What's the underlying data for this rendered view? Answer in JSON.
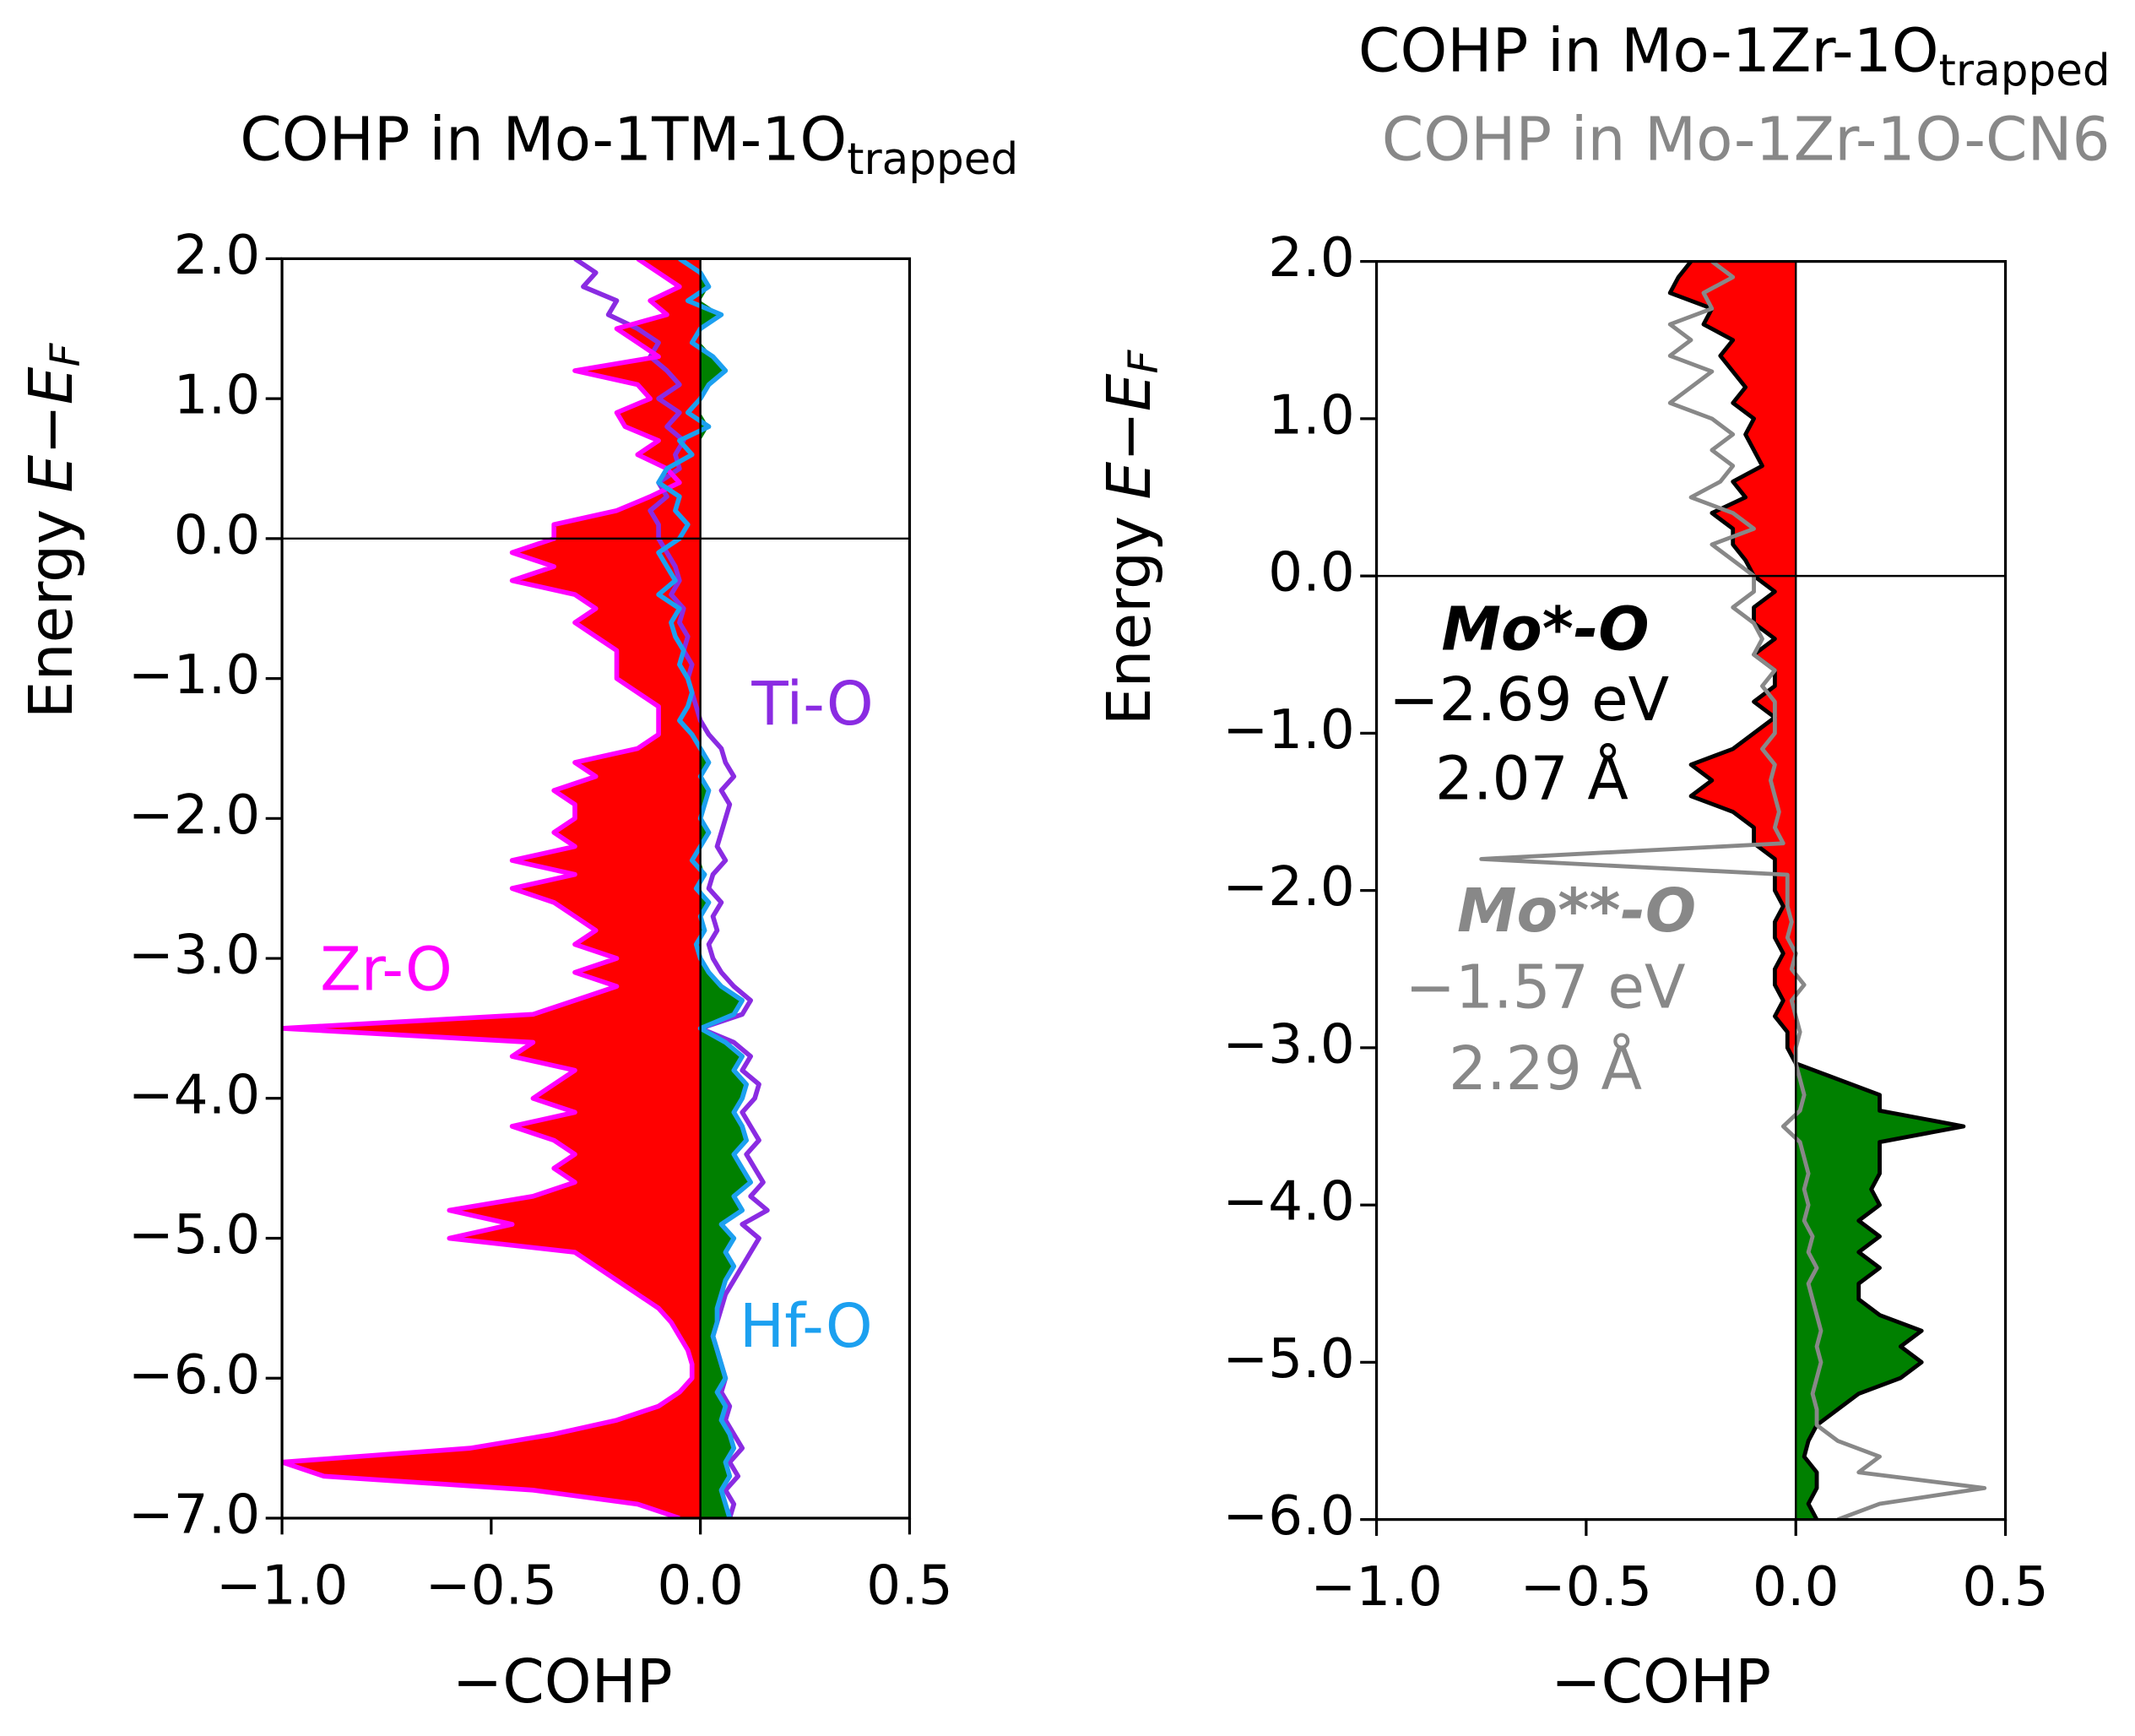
{
  "chart_data": [
    {
      "type": "line",
      "title": "COHP in Mo-1TM-1O",
      "title_subscript": "trapped",
      "xlabel": "−COHP",
      "ylabel": "Energy",
      "ylabel_math": "E−E",
      "ylabel_sub": "F",
      "xlim": [
        -1.0,
        0.5
      ],
      "ylim": [
        -7.0,
        2.0
      ],
      "xticks": [
        {
          "value": -1.0,
          "label": "−1.0"
        },
        {
          "value": -0.5,
          "label": "−0.5"
        },
        {
          "value": 0.0,
          "label": "0.0"
        },
        {
          "value": 0.5,
          "label": "0.5"
        }
      ],
      "yticks": [
        {
          "value": 2.0,
          "label": "2.0"
        },
        {
          "value": 1.0,
          "label": "1.0"
        },
        {
          "value": 0.0,
          "label": "0.0"
        },
        {
          "value": -1.0,
          "label": "−1.0"
        },
        {
          "value": -2.0,
          "label": "−2.0"
        },
        {
          "value": -3.0,
          "label": "−3.0"
        },
        {
          "value": -4.0,
          "label": "−4.0"
        },
        {
          "value": -5.0,
          "label": "−5.0"
        },
        {
          "value": -6.0,
          "label": "−6.0"
        },
        {
          "value": -7.0,
          "label": "−7.0"
        }
      ],
      "fill_negative": "#ff0000",
      "fill_positive": "#008000",
      "energy": [
        2.0,
        1.9,
        1.8,
        1.7,
        1.6,
        1.5,
        1.4,
        1.3,
        1.2,
        1.1,
        1.0,
        0.9,
        0.8,
        0.7,
        0.6,
        0.5,
        0.4,
        0.3,
        0.2,
        0.1,
        0.0,
        -0.1,
        -0.2,
        -0.3,
        -0.4,
        -0.5,
        -0.6,
        -0.7,
        -0.8,
        -0.9,
        -1.0,
        -1.1,
        -1.2,
        -1.3,
        -1.4,
        -1.5,
        -1.6,
        -1.7,
        -1.8,
        -1.9,
        -2.0,
        -2.1,
        -2.2,
        -2.3,
        -2.4,
        -2.5,
        -2.6,
        -2.7,
        -2.8,
        -2.9,
        -3.0,
        -3.1,
        -3.2,
        -3.3,
        -3.4,
        -3.5,
        -3.6,
        -3.7,
        -3.8,
        -3.9,
        -4.0,
        -4.1,
        -4.2,
        -4.3,
        -4.4,
        -4.5,
        -4.6,
        -4.7,
        -4.8,
        -4.9,
        -5.0,
        -5.1,
        -5.2,
        -5.3,
        -5.4,
        -5.5,
        -5.6,
        -5.7,
        -5.8,
        -5.9,
        -6.0,
        -6.1,
        -6.2,
        -6.3,
        -6.4,
        -6.5,
        -6.6,
        -6.7,
        -6.8,
        -6.9,
        -7.0
      ],
      "series": [
        {
          "name": "Zr-O",
          "color": "#ff00ff",
          "fill": true,
          "values": [
            -0.15,
            -0.1,
            -0.05,
            -0.12,
            -0.08,
            -0.2,
            -0.15,
            -0.1,
            -0.3,
            -0.15,
            -0.12,
            -0.2,
            -0.18,
            -0.1,
            -0.15,
            -0.08,
            -0.05,
            -0.12,
            -0.2,
            -0.35,
            -0.35,
            -0.45,
            -0.35,
            -0.45,
            -0.3,
            -0.25,
            -0.3,
            -0.25,
            -0.2,
            -0.2,
            -0.2,
            -0.15,
            -0.1,
            -0.1,
            -0.1,
            -0.15,
            -0.3,
            -0.25,
            -0.35,
            -0.3,
            -0.3,
            -0.35,
            -0.3,
            -0.45,
            -0.3,
            -0.45,
            -0.35,
            -0.3,
            -0.25,
            -0.3,
            -0.2,
            -0.3,
            -0.2,
            -0.3,
            -0.4,
            -1.0,
            -0.4,
            -0.45,
            -0.3,
            -0.35,
            -0.4,
            -0.3,
            -0.45,
            -0.35,
            -0.3,
            -0.35,
            -0.3,
            -0.4,
            -0.6,
            -0.45,
            -0.6,
            -0.3,
            -0.25,
            -0.2,
            -0.15,
            -0.1,
            -0.07,
            -0.05,
            -0.03,
            -0.02,
            -0.02,
            -0.05,
            -0.1,
            -0.2,
            -0.35,
            -0.55,
            -1.0,
            -0.9,
            -0.4,
            -0.15,
            -0.05
          ]
        },
        {
          "name": "Hf-O",
          "color": "#1ca0f0",
          "fill": true,
          "values": [
            -0.05,
            0.0,
            0.02,
            -0.03,
            0.05,
            0.0,
            -0.02,
            0.03,
            0.06,
            0.02,
            0.0,
            -0.03,
            0.02,
            -0.05,
            -0.02,
            -0.08,
            -0.1,
            -0.05,
            -0.06,
            -0.03,
            -0.05,
            -0.1,
            -0.08,
            -0.06,
            -0.1,
            -0.05,
            -0.07,
            -0.06,
            -0.04,
            -0.05,
            -0.03,
            -0.02,
            -0.03,
            -0.05,
            -0.02,
            0.0,
            0.02,
            0.0,
            0.02,
            0.01,
            0.0,
            0.02,
            0.0,
            -0.02,
            0.01,
            -0.01,
            0.02,
            0.0,
            0.01,
            -0.01,
            0.0,
            0.02,
            0.05,
            0.1,
            0.08,
            0.0,
            0.06,
            0.1,
            0.08,
            0.11,
            0.1,
            0.08,
            0.1,
            0.11,
            0.08,
            0.1,
            0.12,
            0.08,
            0.1,
            0.05,
            0.08,
            0.06,
            0.08,
            0.06,
            0.05,
            0.04,
            0.04,
            0.03,
            0.04,
            0.05,
            0.06,
            0.04,
            0.06,
            0.05,
            0.07,
            0.08,
            0.06,
            0.07,
            0.05,
            0.06,
            0.07
          ]
        },
        {
          "name": "Ti-O",
          "color": "#8a2be2",
          "values": [
            -0.3,
            -0.25,
            -0.28,
            -0.2,
            -0.22,
            -0.15,
            -0.1,
            -0.12,
            -0.08,
            -0.05,
            -0.1,
            -0.05,
            -0.08,
            -0.04,
            -0.06,
            -0.05,
            -0.1,
            -0.08,
            -0.12,
            -0.1,
            -0.1,
            -0.08,
            -0.06,
            -0.05,
            -0.07,
            -0.04,
            -0.05,
            -0.03,
            -0.04,
            -0.02,
            -0.03,
            -0.02,
            -0.01,
            0.0,
            0.02,
            0.05,
            0.06,
            0.08,
            0.05,
            0.07,
            0.06,
            0.05,
            0.04,
            0.06,
            0.03,
            0.02,
            0.05,
            0.03,
            0.04,
            0.02,
            0.03,
            0.05,
            0.08,
            0.12,
            0.1,
            0.0,
            0.08,
            0.12,
            0.1,
            0.14,
            0.13,
            0.1,
            0.12,
            0.14,
            0.11,
            0.13,
            0.15,
            0.12,
            0.16,
            0.1,
            0.14,
            0.12,
            0.1,
            0.08,
            0.06,
            0.05,
            0.04,
            0.03,
            0.04,
            0.05,
            0.06,
            0.05,
            0.07,
            0.06,
            0.08,
            0.1,
            0.07,
            0.09,
            0.06,
            0.08,
            0.07
          ]
        }
      ],
      "annotations": [
        {
          "text": "Zr-O",
          "color": "#ff00ff"
        },
        {
          "text": "Ti-O",
          "color": "#8a2be2"
        },
        {
          "text": "Hf-O",
          "color": "#1ca0f0"
        }
      ]
    },
    {
      "type": "line",
      "xlabel": "−COHP",
      "ylabel": "Energy",
      "ylabel_math": "E−E",
      "ylabel_sub": "F",
      "xlim": [
        -1.0,
        0.5
      ],
      "ylim": [
        -6.0,
        2.0
      ],
      "xticks": [
        {
          "value": -1.0,
          "label": "−1.0"
        },
        {
          "value": -0.5,
          "label": "−0.5"
        },
        {
          "value": 0.0,
          "label": "0.0"
        },
        {
          "value": 0.5,
          "label": "0.5"
        }
      ],
      "yticks": [
        {
          "value": 2.0,
          "label": "2.0"
        },
        {
          "value": 1.0,
          "label": "1.0"
        },
        {
          "value": 0.0,
          "label": "0.0"
        },
        {
          "value": -1.0,
          "label": "−1.0"
        },
        {
          "value": -2.0,
          "label": "−2.0"
        },
        {
          "value": -3.0,
          "label": "−3.0"
        },
        {
          "value": -4.0,
          "label": "−4.0"
        },
        {
          "value": -5.0,
          "label": "−5.0"
        },
        {
          "value": -6.0,
          "label": "−6.0"
        }
      ],
      "fill_negative": "#ff0000",
      "fill_positive": "#008000",
      "energy": [
        2.0,
        1.9,
        1.8,
        1.7,
        1.6,
        1.5,
        1.4,
        1.3,
        1.2,
        1.1,
        1.0,
        0.9,
        0.8,
        0.7,
        0.6,
        0.5,
        0.4,
        0.3,
        0.2,
        0.1,
        0.0,
        -0.1,
        -0.2,
        -0.3,
        -0.4,
        -0.5,
        -0.6,
        -0.7,
        -0.8,
        -0.9,
        -1.0,
        -1.1,
        -1.2,
        -1.3,
        -1.4,
        -1.5,
        -1.6,
        -1.7,
        -1.8,
        -1.9,
        -2.0,
        -2.1,
        -2.2,
        -2.3,
        -2.4,
        -2.5,
        -2.6,
        -2.7,
        -2.8,
        -2.9,
        -3.0,
        -3.1,
        -3.2,
        -3.3,
        -3.4,
        -3.5,
        -3.6,
        -3.7,
        -3.8,
        -3.9,
        -4.0,
        -4.1,
        -4.2,
        -4.3,
        -4.4,
        -4.5,
        -4.6,
        -4.7,
        -4.8,
        -4.9,
        -5.0,
        -5.1,
        -5.2,
        -5.3,
        -5.4,
        -5.5,
        -5.6,
        -5.7,
        -5.8,
        -5.9,
        -6.0
      ],
      "series": [
        {
          "name": "COHP in Mo-1Zr-1O",
          "name_subscript": "trapped",
          "color": "#000000",
          "fill": true,
          "values": [
            -0.25,
            -0.28,
            -0.3,
            -0.2,
            -0.22,
            -0.15,
            -0.18,
            -0.15,
            -0.12,
            -0.15,
            -0.1,
            -0.12,
            -0.1,
            -0.08,
            -0.15,
            -0.12,
            -0.2,
            -0.15,
            -0.15,
            -0.12,
            -0.1,
            -0.05,
            -0.1,
            -0.1,
            -0.05,
            -0.1,
            -0.05,
            -0.05,
            -0.1,
            -0.05,
            -0.1,
            -0.15,
            -0.25,
            -0.2,
            -0.25,
            -0.15,
            -0.1,
            -0.1,
            -0.05,
            -0.05,
            -0.05,
            -0.03,
            -0.05,
            -0.05,
            -0.03,
            -0.05,
            -0.05,
            -0.03,
            -0.05,
            -0.02,
            -0.02,
            0.0,
            0.1,
            0.2,
            0.2,
            0.4,
            0.2,
            0.2,
            0.2,
            0.18,
            0.2,
            0.15,
            0.2,
            0.15,
            0.2,
            0.15,
            0.15,
            0.2,
            0.3,
            0.25,
            0.3,
            0.25,
            0.15,
            0.1,
            0.05,
            0.03,
            0.02,
            0.05,
            0.05,
            0.03,
            0.05
          ]
        },
        {
          "name": "COHP in Mo-1Zr-1O-CN6",
          "color": "#888888",
          "values": [
            -0.2,
            -0.15,
            -0.22,
            -0.2,
            -0.3,
            -0.25,
            -0.3,
            -0.2,
            -0.25,
            -0.3,
            -0.2,
            -0.15,
            -0.2,
            -0.15,
            -0.18,
            -0.25,
            -0.15,
            -0.1,
            -0.2,
            -0.15,
            -0.1,
            -0.1,
            -0.15,
            -0.1,
            -0.08,
            -0.1,
            -0.05,
            -0.08,
            -0.05,
            -0.05,
            -0.05,
            -0.08,
            -0.05,
            -0.06,
            -0.05,
            -0.04,
            -0.05,
            -0.03,
            -0.75,
            -0.02,
            -0.02,
            -0.02,
            -0.01,
            -0.02,
            0.0,
            -0.01,
            0.02,
            -0.01,
            0.0,
            0.01,
            0.0,
            0.0,
            0.01,
            0.02,
            0.01,
            -0.03,
            0.01,
            0.02,
            0.03,
            0.02,
            0.03,
            0.02,
            0.04,
            0.03,
            0.05,
            0.03,
            0.04,
            0.05,
            0.06,
            0.05,
            0.06,
            0.05,
            0.04,
            0.05,
            0.05,
            0.1,
            0.2,
            0.15,
            0.45,
            0.2,
            0.1
          ]
        }
      ],
      "annotations": [
        {
          "text": "Mo*-O",
          "color": "#000000",
          "style": "bold-italic"
        },
        {
          "text": "−2.69 eV",
          "color": "#000000"
        },
        {
          "text": "2.07 Å",
          "color": "#000000"
        },
        {
          "text": "Mo**-O",
          "color": "#888888",
          "style": "bold-italic"
        },
        {
          "text": "−1.57 eV",
          "color": "#888888"
        },
        {
          "text": "2.29 Å",
          "color": "#888888"
        }
      ]
    }
  ]
}
